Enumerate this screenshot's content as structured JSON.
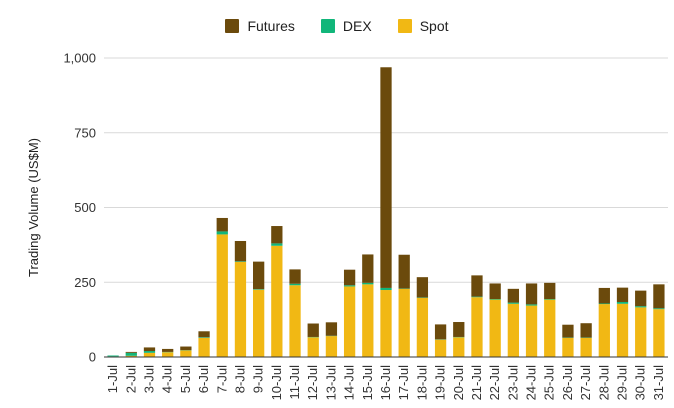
{
  "chart_data": {
    "type": "bar",
    "stacked": true,
    "title": "",
    "xlabel": "",
    "ylabel": "Trading Volume (US$M)",
    "ylim": [
      0,
      1000
    ],
    "yticks": [
      "0",
      "250",
      "500",
      "750",
      "1,000"
    ],
    "grid": true,
    "legend_position": "top-center",
    "categories": [
      "1-Jul",
      "2-Jul",
      "3-Jul",
      "4-Jul",
      "5-Jul",
      "6-Jul",
      "7-Jul",
      "8-Jul",
      "9-Jul",
      "10-Jul",
      "11-Jul",
      "12-Jul",
      "13-Jul",
      "14-Jul",
      "15-Jul",
      "16-Jul",
      "17-Jul",
      "18-Jul",
      "19-Jul",
      "20-Jul",
      "21-Jul",
      "22-Jul",
      "23-Jul",
      "24-Jul",
      "25-Jul",
      "26-Jul",
      "27-Jul",
      "28-Jul",
      "29-Jul",
      "30-Jul",
      "31-Jul"
    ],
    "series": [
      {
        "name": "Spot",
        "color": "#f1b814",
        "values": [
          2,
          4,
          14,
          16,
          22,
          64,
          410,
          318,
          225,
          372,
          240,
          66,
          70,
          236,
          243,
          224,
          228,
          198,
          58,
          66,
          200,
          192,
          178,
          172,
          192,
          64,
          64,
          177,
          178,
          166,
          160
        ]
      },
      {
        "name": "DEX",
        "color": "#11b67a",
        "values": [
          3,
          10,
          6,
          1,
          1,
          2,
          10,
          2,
          2,
          8,
          5,
          1,
          1,
          4,
          5,
          7,
          1,
          1,
          1,
          1,
          2,
          2,
          4,
          4,
          2,
          1,
          1,
          2,
          6,
          4,
          3
        ]
      },
      {
        "name": "Futures",
        "color": "#6b4a0c",
        "values": [
          0,
          3,
          12,
          10,
          12,
          20,
          45,
          68,
          92,
          58,
          48,
          45,
          45,
          52,
          95,
          738,
          113,
          68,
          50,
          50,
          71,
          52,
          46,
          70,
          54,
          43,
          48,
          52,
          48,
          52,
          80
        ]
      }
    ]
  }
}
